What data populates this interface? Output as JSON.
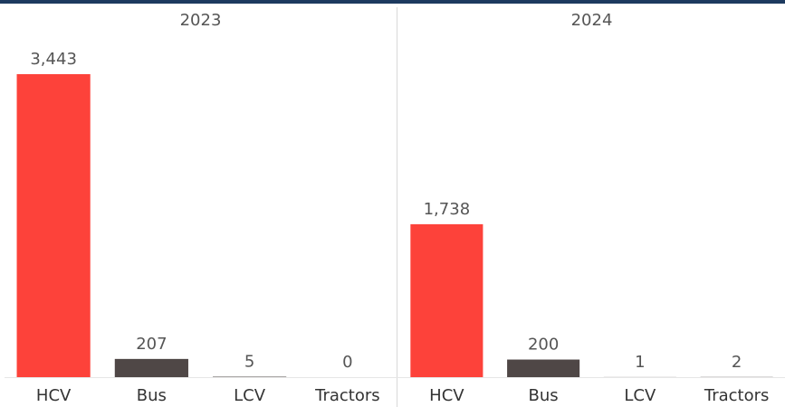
{
  "chart_data": [
    {
      "type": "bar",
      "title": "2023",
      "categories": [
        "HCV",
        "Bus",
        "LCV",
        "Tractors"
      ],
      "values": [
        3443,
        207,
        5,
        0
      ],
      "value_labels": [
        "3,443",
        "207",
        "5",
        "0"
      ],
      "colors": [
        "#fd423a",
        "#4f4746",
        "#4f4746",
        "#4f4746"
      ]
    },
    {
      "type": "bar",
      "title": "2024",
      "categories": [
        "HCV",
        "Bus",
        "LCV",
        "Tractors"
      ],
      "values": [
        1738,
        200,
        1,
        2
      ],
      "value_labels": [
        "1,738",
        "200",
        "1",
        "2"
      ],
      "colors": [
        "#fd423a",
        "#4f4746",
        "#4f4746",
        "#4f4746"
      ]
    }
  ]
}
